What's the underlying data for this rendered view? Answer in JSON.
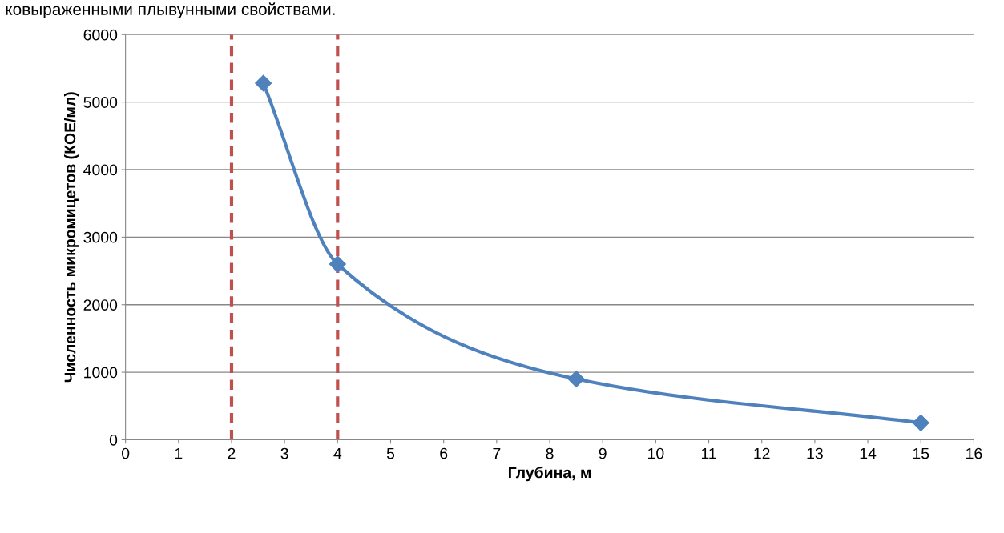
{
  "chart_data": {
    "type": "line",
    "xlabel": "Глубина, м",
    "ylabel": "Численность микромицетов (КОЕ/мл)",
    "annotations": [
      "ковыраженными плывунными свойствами."
    ],
    "x": [
      2.6,
      4,
      8.5,
      15
    ],
    "series": [
      {
        "color": "#4f81bd",
        "values": [
          5280,
          2600,
          900,
          250
        ]
      }
    ],
    "marker": "diamond",
    "line_style": "solid",
    "xlim": [
      0,
      16
    ],
    "xticks": [
      0,
      1,
      2,
      3,
      4,
      5,
      6,
      7,
      8,
      9,
      10,
      11,
      12,
      13,
      14,
      15,
      16
    ],
    "ylim": [
      0,
      6000
    ],
    "yticks": [
      0,
      1000,
      2000,
      3000,
      4000,
      5000,
      6000
    ],
    "grid": "y",
    "legend": false,
    "ref_lines": [
      {
        "axis": "x",
        "value": 2,
        "color": "#c0504d",
        "line_style": "dashed"
      },
      {
        "axis": "x",
        "value": 4,
        "color": "#c0504d",
        "line_style": "dashed"
      }
    ]
  }
}
